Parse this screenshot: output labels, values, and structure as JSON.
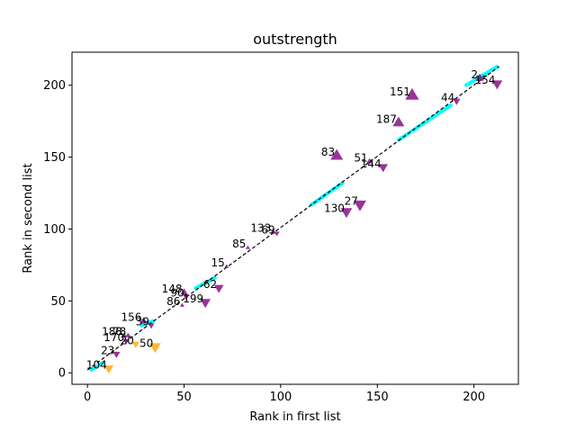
{
  "chart_data": {
    "type": "scatter",
    "title": "outstrength",
    "xlabel": "Rank in first list",
    "ylabel": "Rank in second list",
    "xlim": [
      -8,
      223
    ],
    "ylim": [
      -8,
      223
    ],
    "xticks": [
      0,
      50,
      100,
      150,
      200
    ],
    "yticks": [
      0,
      50,
      100,
      150,
      200
    ],
    "grid": false,
    "legend": "none",
    "colors": {
      "purple": "#800080",
      "orange": "#ffa500",
      "cyan": "#00ffff",
      "diagonal": "#000000"
    },
    "diagonal": {
      "x": [
        0,
        213
      ],
      "y": [
        2,
        213
      ]
    },
    "cyan_segments": [
      {
        "x": [
          2,
          8
        ],
        "y": [
          2,
          7
        ]
      },
      {
        "x": [
          28,
          34
        ],
        "y": [
          33,
          36
        ]
      },
      {
        "x": [
          56,
          66
        ],
        "y": [
          59,
          66
        ]
      },
      {
        "x": [
          116,
          132
        ],
        "y": [
          117,
          132
        ]
      },
      {
        "x": [
          161,
          188
        ],
        "y": [
          162,
          186
        ]
      },
      {
        "x": [
          196,
          212
        ],
        "y": [
          200,
          213
        ]
      }
    ],
    "points": [
      {
        "label": "2",
        "x": 203,
        "y": 205,
        "marker": "triangle-up",
        "color": "purple",
        "size": 5
      },
      {
        "label": "154",
        "x": 212,
        "y": 201,
        "marker": "triangle-down",
        "color": "purple",
        "size": 7
      },
      {
        "label": "151",
        "x": 168,
        "y": 193,
        "marker": "triangle-up",
        "color": "purple",
        "size": 10
      },
      {
        "label": "44",
        "x": 191,
        "y": 189,
        "marker": "triangle-down",
        "color": "purple",
        "size": 4
      },
      {
        "label": "187",
        "x": 161,
        "y": 174,
        "marker": "triangle-up",
        "color": "purple",
        "size": 8
      },
      {
        "label": "83",
        "x": 129,
        "y": 151,
        "marker": "triangle-up",
        "color": "purple",
        "size": 9
      },
      {
        "label": "51",
        "x": 146,
        "y": 147,
        "marker": "triangle-up",
        "color": "purple",
        "size": 3
      },
      {
        "label": "144",
        "x": 153,
        "y": 143,
        "marker": "triangle-down",
        "color": "purple",
        "size": 6
      },
      {
        "label": "27",
        "x": 141,
        "y": 117,
        "marker": "triangle-down",
        "color": "purple",
        "size": 9
      },
      {
        "label": "130",
        "x": 134,
        "y": 112,
        "marker": "triangle-down",
        "color": "purple",
        "size": 8
      },
      {
        "label": "133",
        "x": 96,
        "y": 98,
        "marker": "triangle-up",
        "color": "purple",
        "size": 2
      },
      {
        "label": "69",
        "x": 98,
        "y": 97,
        "marker": "triangle-down",
        "color": "purple",
        "size": 2
      },
      {
        "label": "85",
        "x": 83,
        "y": 87,
        "marker": "triangle-up",
        "color": "purple",
        "size": 1
      },
      {
        "label": "15",
        "x": 72,
        "y": 74,
        "marker": "triangle-up",
        "color": "purple",
        "size": 1
      },
      {
        "label": "62",
        "x": 68,
        "y": 59,
        "marker": "triangle-down",
        "color": "purple",
        "size": 6
      },
      {
        "label": "148",
        "x": 50,
        "y": 56,
        "marker": "triangle-up",
        "color": "purple",
        "size": 4
      },
      {
        "label": "90",
        "x": 51,
        "y": 53,
        "marker": "triangle-down",
        "color": "purple",
        "size": 3
      },
      {
        "label": "199",
        "x": 61,
        "y": 49,
        "marker": "triangle-down",
        "color": "purple",
        "size": 7
      },
      {
        "label": "86",
        "x": 49,
        "y": 47,
        "marker": "triangle-up",
        "color": "purple",
        "size": 1
      },
      {
        "label": "156",
        "x": 29,
        "y": 36,
        "marker": "triangle-up",
        "color": "purple",
        "size": 4
      },
      {
        "label": "39",
        "x": 33,
        "y": 33,
        "marker": "triangle-down",
        "color": "purple",
        "size": 3
      },
      {
        "label": "188",
        "x": 19,
        "y": 26,
        "marker": "triangle-up",
        "color": "purple",
        "size": 2
      },
      {
        "label": "78",
        "x": 21,
        "y": 26,
        "marker": "triangle-up",
        "color": "purple",
        "size": 2
      },
      {
        "label": "170",
        "x": 20,
        "y": 22,
        "marker": "triangle-down",
        "color": "purple",
        "size": 3
      },
      {
        "label": "20",
        "x": 25,
        "y": 20,
        "marker": "triangle-down",
        "color": "orange",
        "size": 4
      },
      {
        "label": "50",
        "x": 35,
        "y": 18,
        "marker": "triangle-down",
        "color": "orange",
        "size": 8
      },
      {
        "label": "23",
        "x": 15,
        "y": 13,
        "marker": "triangle-down",
        "color": "purple",
        "size": 4
      },
      {
        "label": "104",
        "x": 11,
        "y": 3,
        "marker": "triangle-down",
        "color": "orange",
        "size": 6
      }
    ]
  }
}
